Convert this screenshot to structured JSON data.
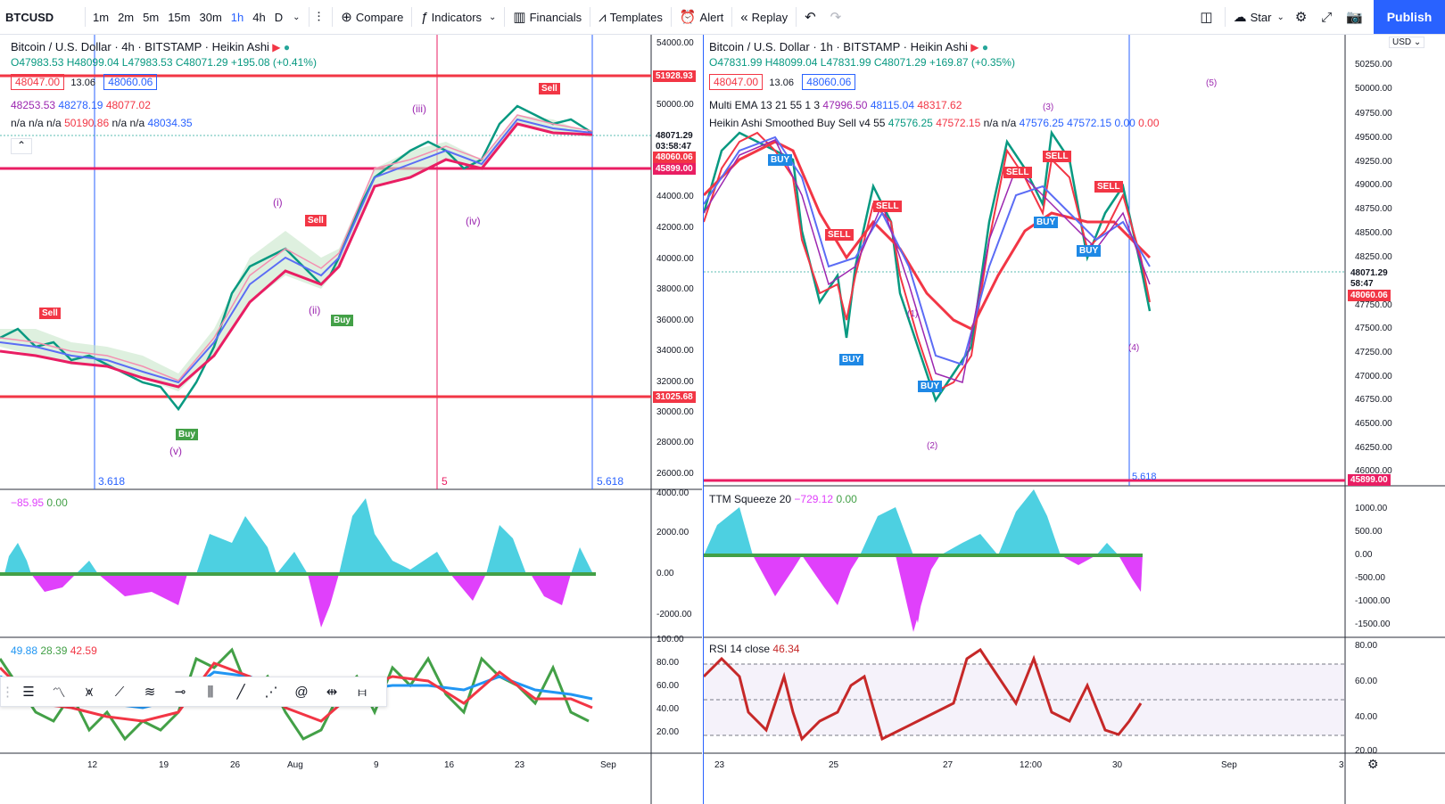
{
  "toolbar": {
    "symbol": "BTCUSD",
    "timeframes": [
      "1m",
      "2m",
      "5m",
      "15m",
      "30m",
      "1h",
      "4h",
      "D"
    ],
    "active_timeframe": "1h",
    "compare": "Compare",
    "indicators": "Indicators",
    "financials": "Financials",
    "templates": "Templates",
    "alert": "Alert",
    "replay": "Replay",
    "star": "Star",
    "publish": "Publish"
  },
  "left_chart": {
    "title": "Bitcoin / U.S. Dollar · 4h · BITSTAMP · Heikin Ashi",
    "ohlc": "O47983.53 H48099.04 L47983.53 C48071.29 +195.08 (+0.41%)",
    "sell_box": "48047.00",
    "spread": "13.06",
    "buy_box": "48060.06",
    "ema_line": [
      "48253.53",
      "48278.19",
      "48077.02"
    ],
    "na_line": [
      "n/a n/a n/a",
      "50190.86",
      "n/a n/a",
      "48034.35"
    ],
    "price_axis": [
      "54000.00",
      "52000.00",
      "50000.00",
      "48000.00",
      "46000.00",
      "44000.00",
      "42000.00",
      "40000.00",
      "38000.00",
      "36000.00",
      "34000.00",
      "32000.00",
      "30000.00",
      "28000.00",
      "26000.00"
    ],
    "tags": {
      "top": "51928.93",
      "last": "48071.29",
      "countdown": "03:58:47",
      "bid": "48060.06",
      "support": "45899.00",
      "low": "31025.68"
    },
    "fib_labels": [
      "3.618",
      "5",
      "5.618"
    ],
    "wave_labels": [
      "(i)",
      "(ii)",
      "(iii)",
      "(iv)",
      "(v)"
    ],
    "signals": {
      "sell": "Sell",
      "buy": "Buy"
    },
    "osc_legend": [
      "−85.95",
      "0.00"
    ],
    "osc_axis": [
      "4000.00",
      "2000.00",
      "0.00",
      "-2000.00"
    ],
    "lower_legend": [
      "49.88",
      "28.39",
      "42.59"
    ],
    "lower_axis": [
      "100.00",
      "80.00",
      "60.00",
      "40.00",
      "20.00"
    ],
    "time_axis": [
      "12",
      "19",
      "26",
      "Aug",
      "9",
      "16",
      "23",
      "Sep"
    ]
  },
  "right_chart": {
    "title": "Bitcoin / U.S. Dollar · 1h · BITSTAMP · Heikin Ashi",
    "ohlc": "O47831.99 H48099.04 L47831.99 C48071.29 +169.87 (+0.35%)",
    "sell_box": "48047.00",
    "spread": "13.06",
    "buy_box": "48060.06",
    "multi_ema": "Multi EMA 13 21 55 1 3",
    "multi_ema_vals": [
      "47996.50",
      "48115.04",
      "48317.62"
    ],
    "heikin_smooth": "Heikin Ashi Smoothed Buy Sell v4 55",
    "heikin_vals": [
      "47576.25",
      "47572.15",
      "n/a n/a",
      "47576.25",
      "47572.15",
      "0.00",
      "0.00"
    ],
    "currency": "USD",
    "price_axis": [
      "50250.00",
      "50000.00",
      "49750.00",
      "49500.00",
      "49250.00",
      "49000.00",
      "48750.00",
      "48500.00",
      "48250.00",
      "48000.00",
      "47750.00",
      "47500.00",
      "47250.00",
      "47000.00",
      "46750.00",
      "46500.00",
      "46250.00",
      "46000.00"
    ],
    "tags": {
      "last": "48071.29",
      "countdown": "58:47",
      "bid": "48060.06",
      "support": "45899.00"
    },
    "fib_label": "5.618",
    "signals": {
      "buy": "BUY",
      "sell": "SELL"
    },
    "wave_labels": [
      "(1)",
      "(2)",
      "(3)",
      "(4)",
      "(5)"
    ],
    "ttm_legend": [
      "TTM Squeeze 20",
      "−729.12",
      "0.00"
    ],
    "ttm_axis": [
      "1000.00",
      "500.00",
      "0.00",
      "-500.00",
      "-1000.00",
      "-1500.00"
    ],
    "rsi_legend": [
      "RSI 14 close",
      "46.34"
    ],
    "rsi_axis": [
      "80.00",
      "60.00",
      "40.00",
      "20.00"
    ],
    "time_axis": [
      "23",
      "25",
      "27",
      "12:00",
      "30",
      "Sep",
      "3"
    ]
  },
  "colors": {
    "red": "#f23645",
    "green": "#089981",
    "accent": "#2962ff",
    "purple": "#9c27b0",
    "pink": "#e91e63"
  }
}
